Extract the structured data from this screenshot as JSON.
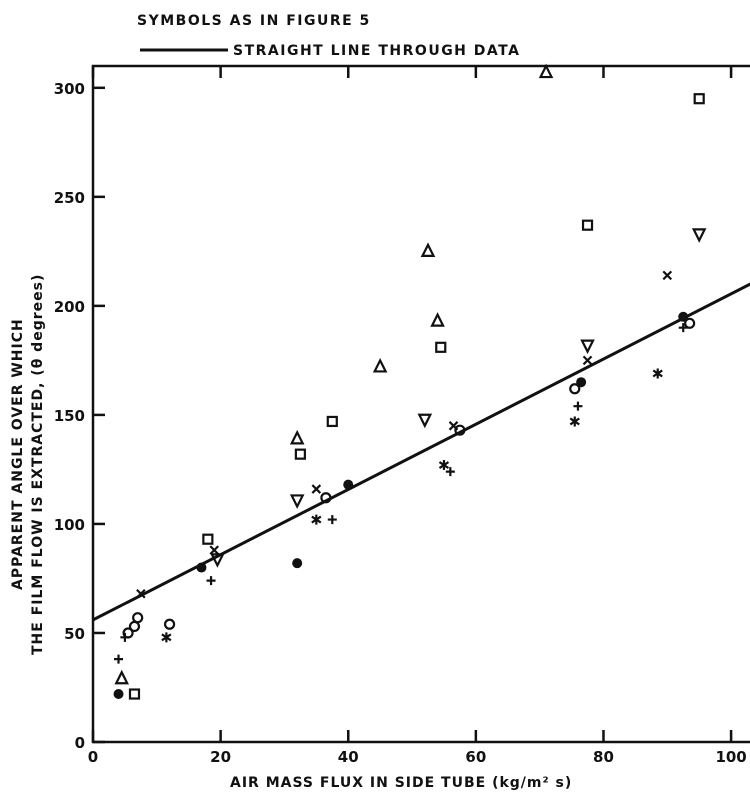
{
  "chart_data": {
    "type": "scatter",
    "note": "SYMBOLS AS IN FIGURE 5",
    "legend": [
      {
        "label": "STRAIGHT LINE THROUGH DATA",
        "marker": "line"
      }
    ],
    "xlabel": "AIR MASS FLUX IN SIDE TUBE  (kg/m² s)",
    "ylabel_line1": "APPARENT ANGLE OVER WHICH",
    "ylabel_line2": "THE FILM FLOW IS EXTRACTED,  (θ degrees)",
    "xlim": [
      0,
      105
    ],
    "ylim": [
      0,
      310
    ],
    "xticks": [
      0,
      20,
      40,
      60,
      80,
      100
    ],
    "yticks": [
      0,
      50,
      100,
      150,
      200,
      250,
      300
    ],
    "fit_line": {
      "x": [
        0,
        105
      ],
      "y": [
        56,
        213
      ]
    },
    "series": [
      {
        "marker": "triangle-up",
        "points": [
          [
            4.5,
            29
          ],
          [
            32,
            139
          ],
          [
            45,
            172
          ],
          [
            52.5,
            225
          ],
          [
            54,
            193
          ],
          [
            71,
            307
          ]
        ]
      },
      {
        "marker": "triangle-down",
        "points": [
          [
            19.5,
            84
          ],
          [
            32,
            111
          ],
          [
            52,
            148
          ],
          [
            77.5,
            182
          ],
          [
            95,
            233
          ]
        ]
      },
      {
        "marker": "square",
        "points": [
          [
            6.5,
            22
          ],
          [
            18,
            93
          ],
          [
            32.5,
            132
          ],
          [
            37.5,
            147
          ],
          [
            54.5,
            181
          ],
          [
            77.5,
            237
          ],
          [
            95,
            295
          ]
        ]
      },
      {
        "marker": "filled-circle",
        "points": [
          [
            4,
            22
          ],
          [
            17,
            80
          ],
          [
            32,
            82
          ],
          [
            40,
            118
          ],
          [
            76.5,
            165
          ],
          [
            92.5,
            195
          ]
        ]
      },
      {
        "marker": "open-circle",
        "points": [
          [
            5.5,
            50
          ],
          [
            6.5,
            53
          ],
          [
            7,
            57
          ],
          [
            12,
            54
          ],
          [
            36.5,
            112
          ],
          [
            57.5,
            143
          ],
          [
            75.5,
            162
          ],
          [
            93.5,
            192
          ]
        ]
      },
      {
        "marker": "x",
        "points": [
          [
            7.5,
            68
          ],
          [
            19,
            88
          ],
          [
            35,
            116
          ],
          [
            56.5,
            145
          ],
          [
            77.5,
            175
          ],
          [
            90,
            214
          ]
        ]
      },
      {
        "marker": "asterisk",
        "points": [
          [
            11.5,
            48
          ],
          [
            35,
            102
          ],
          [
            55,
            127
          ],
          [
            75.5,
            147
          ],
          [
            88.5,
            169
          ]
        ]
      },
      {
        "marker": "plus",
        "points": [
          [
            4,
            38
          ],
          [
            5,
            48
          ],
          [
            18.5,
            74
          ],
          [
            37.5,
            102
          ],
          [
            56,
            124
          ],
          [
            76,
            154
          ],
          [
            92.5,
            190
          ]
        ]
      }
    ]
  }
}
